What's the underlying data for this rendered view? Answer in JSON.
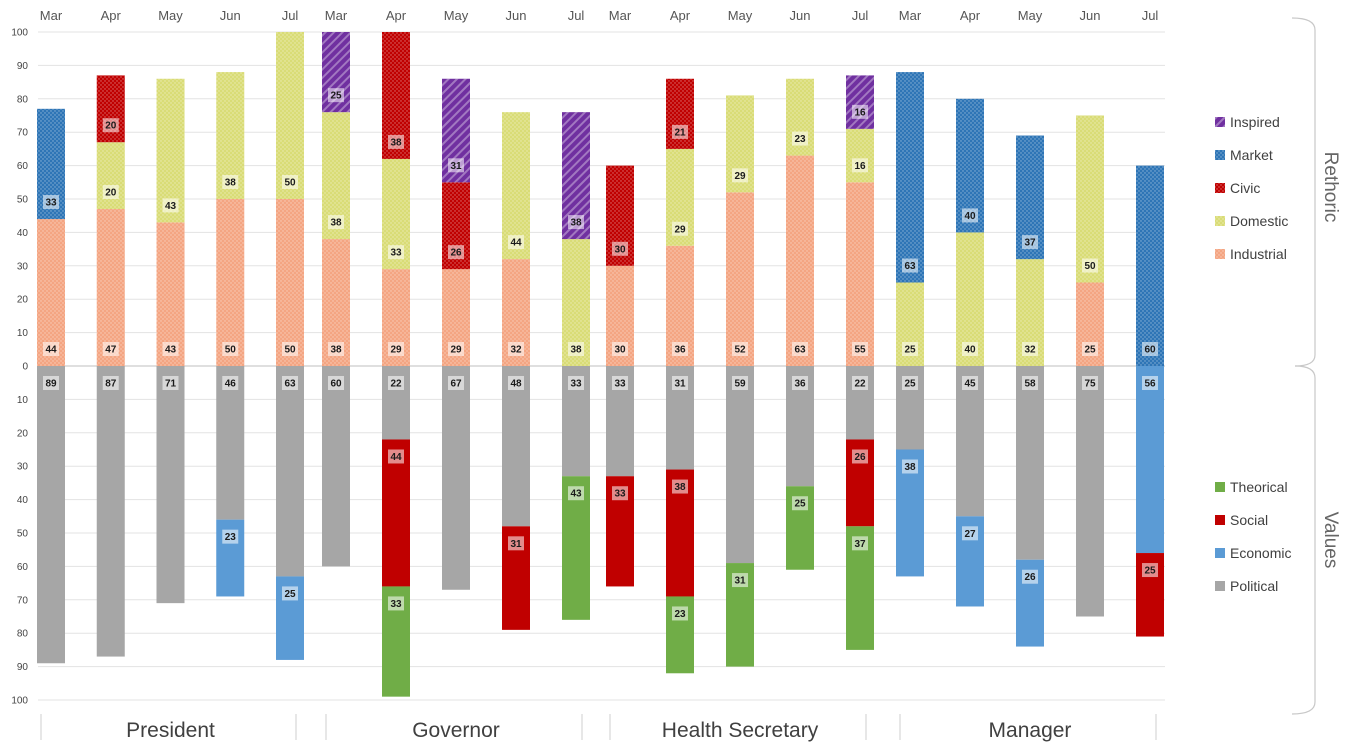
{
  "chart_data": {
    "type": "bar",
    "subtype": "diverging-stacked",
    "months": [
      "Mar",
      "Apr",
      "May",
      "Jun",
      "Jul"
    ],
    "y_ticks_top": [
      "100",
      "90",
      "80",
      "70",
      "60",
      "50",
      "40",
      "30",
      "20",
      "10",
      "0"
    ],
    "y_ticks_bottom": [
      "10",
      "20",
      "30",
      "40",
      "50",
      "60",
      "70",
      "80",
      "90",
      "100"
    ],
    "ylim_top": [
      0,
      100
    ],
    "ylim_bottom": [
      0,
      100
    ],
    "grid": true,
    "legend_placement": "right",
    "side_labels": {
      "top": "Rethoric",
      "bottom": "Values"
    },
    "rhetoric_legend": [
      "Inspired",
      "Market",
      "Civic",
      "Domestic",
      "Industrial"
    ],
    "values_legend": [
      "Theorical",
      "Social",
      "Economic",
      "Political"
    ],
    "colors": {
      "Industrial": "#f4a582",
      "Domestic": "#d9dc76",
      "Civic": "#c00000",
      "Market": "#2e75b6",
      "Inspired": "#7030a0",
      "Political": "#a6a6a6",
      "Economic": "#5b9bd5",
      "Social": "#c00000",
      "Theorical": "#70ad47"
    },
    "panels": [
      {
        "name": "President",
        "rhetoric": {
          "Industrial": [
            44,
            47,
            43,
            50,
            50
          ],
          "Domestic": [
            0,
            20,
            43,
            38,
            50
          ],
          "Civic": [
            0,
            20,
            0,
            0,
            0
          ],
          "Market": [
            33,
            0,
            0,
            0,
            0
          ],
          "Inspired": [
            0,
            0,
            0,
            0,
            0
          ]
        },
        "values": {
          "Political": [
            89,
            87,
            71,
            46,
            63
          ],
          "Economic": [
            0,
            0,
            0,
            23,
            25
          ],
          "Social": [
            0,
            0,
            0,
            0,
            0
          ],
          "Theorical": [
            0,
            0,
            0,
            0,
            0
          ]
        }
      },
      {
        "name": "Governor",
        "rhetoric": {
          "Industrial": [
            38,
            29,
            29,
            32,
            0
          ],
          "Domestic": [
            38,
            33,
            0,
            44,
            38
          ],
          "Civic": [
            0,
            38,
            26,
            0,
            0
          ],
          "Market": [
            0,
            0,
            0,
            0,
            0
          ],
          "Inspired": [
            25,
            0,
            31,
            0,
            38
          ]
        },
        "values": {
          "Political": [
            60,
            22,
            67,
            48,
            33
          ],
          "Economic": [
            0,
            0,
            0,
            0,
            0
          ],
          "Social": [
            0,
            44,
            0,
            31,
            0
          ],
          "Theorical": [
            0,
            33,
            0,
            0,
            43
          ]
        }
      },
      {
        "name": "Health Secretary",
        "rhetoric": {
          "Industrial": [
            30,
            36,
            52,
            63,
            55
          ],
          "Domestic": [
            0,
            29,
            29,
            23,
            16
          ],
          "Civic": [
            30,
            21,
            0,
            0,
            0
          ],
          "Market": [
            0,
            0,
            0,
            0,
            0
          ],
          "Inspired": [
            0,
            0,
            0,
            0,
            16
          ]
        },
        "values": {
          "Political": [
            33,
            31,
            59,
            36,
            22
          ],
          "Economic": [
            0,
            0,
            0,
            0,
            0
          ],
          "Social": [
            33,
            38,
            0,
            0,
            26
          ],
          "Theorical": [
            0,
            23,
            31,
            25,
            37
          ]
        }
      },
      {
        "name": "Manager",
        "rhetoric": {
          "Industrial": [
            0,
            0,
            0,
            25,
            0
          ],
          "Domestic": [
            25,
            40,
            32,
            50,
            0
          ],
          "Civic": [
            0,
            0,
            0,
            0,
            0
          ],
          "Market": [
            63,
            40,
            37,
            0,
            60
          ],
          "Inspired": [
            0,
            0,
            0,
            0,
            0
          ]
        },
        "values": {
          "Political": [
            25,
            45,
            58,
            75,
            0
          ],
          "Economic": [
            38,
            27,
            26,
            0,
            56
          ],
          "Social": [
            0,
            0,
            0,
            0,
            25
          ],
          "Theorical": [
            0,
            0,
            0,
            0,
            0
          ]
        }
      }
    ]
  }
}
